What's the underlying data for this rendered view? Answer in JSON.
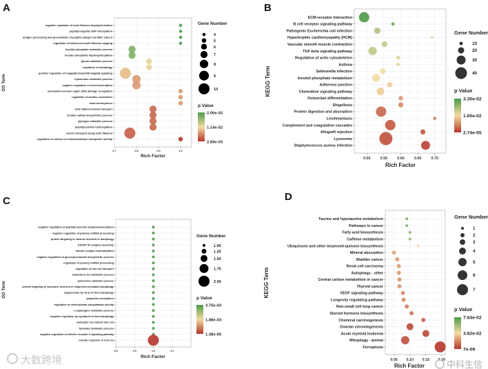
{
  "chart_data": [
    {
      "type": "scatter",
      "letter": "A",
      "y_title": "GO Term",
      "x_title": "Rich Factor",
      "xlim": [
        0.7,
        1.05
      ],
      "xticks": [
        0.7,
        0.8,
        0.9,
        1.0
      ],
      "xtick_labels": [
        "0.7",
        "0.8",
        "0.9",
        "1.0"
      ],
      "terms": [
        "negative regulation of actin filament depolymerization",
        "peptidyl-arginine ADP-ribosylation",
        "antigen processing and presentation of peptide antigen via MHC class II",
        "regulation of barbed-end actin filament capping",
        "inositol phosphate metabolic process",
        "inositol phosphate dephosphorylation",
        "glucan catabolic process",
        "regulation of autophagy",
        "positive regulation of I-kappaB kinase/NF-kappaB signaling",
        "hyaluronan metabolic process",
        "negative regulation of viral transcription",
        "nucleotide-excision repair, DNA damage recognition",
        "regulation of cardiac conduction",
        "head development",
        "actin filament-based transport",
        "keratan sulfate biosynthetic process",
        "glycogen catabolic process",
        "peptidyl-proline hydroxylation",
        "vesicle transport along actin filament",
        "regulation of sodium ion transmembrane transporter activity"
      ],
      "rich_factor": [
        1.0,
        1.0,
        1.0,
        1.0,
        0.78,
        0.78,
        0.857,
        0.857,
        0.75,
        0.8,
        0.8,
        1.0,
        1.0,
        1.0,
        0.875,
        0.875,
        0.875,
        0.875,
        0.77,
        1.0
      ],
      "gene_number": [
        4,
        4,
        4,
        4,
        7,
        7,
        6,
        6,
        10,
        8,
        8,
        5,
        5,
        5,
        7,
        7,
        7,
        7,
        10,
        5
      ],
      "p_value": [
        0.02,
        0.02,
        0.02,
        0.02,
        0.0174,
        0.0174,
        0.0123,
        0.0123,
        0.0097,
        0.008,
        0.008,
        0.008,
        0.008,
        0.008,
        0.0054,
        0.0054,
        0.0054,
        0.0054,
        0.0049,
        0.00283
      ],
      "size_legend": {
        "title": "Gene Number",
        "values": [
          4,
          5,
          6,
          7,
          8,
          9,
          10
        ],
        "labels": [
          "4",
          "5",
          "6",
          "7",
          "8",
          "9",
          "10"
        ]
      },
      "color_legend": {
        "title": "p Value",
        "range": [
          0.00283,
          0.02
        ],
        "labels": [
          "2.00e-02",
          "1.14e-02",
          "2.83e-03"
        ]
      }
    },
    {
      "type": "scatter",
      "letter": "B",
      "y_title": "KEGG Term",
      "x_title": "Rich Factor",
      "xlim": [
        0.463,
        0.733
      ],
      "xticks": [
        0.5,
        0.55,
        0.6,
        0.65,
        0.7
      ],
      "xtick_labels": [
        "0.50",
        "0.55",
        "0.60",
        "0.65",
        "0.70"
      ],
      "terms": [
        "ECM-receptor interaction",
        "B cell receptor signaling pathway",
        "Pathogenic Escherichia coli infection",
        "Hypertrophic cardiomyopathy (HCM)",
        "Vascular smooth muscle contraction",
        "TGF-beta signaling pathway",
        "Regulation of actin cytoskeleton",
        "Asthma",
        "Salmonella infection",
        "Inositol phosphate metabolism",
        "Adherens junction",
        "Chemokine signaling pathway",
        "Osteoclast differentiation",
        "Shigellosis",
        "Protein digestion and absorption",
        "Leishmaniasis",
        "Complement and coagulation cascades",
        "Allograft rejection",
        "Lysosome",
        "Staphylococcus aureus infection"
      ],
      "rich_factor": [
        0.492,
        0.577,
        0.531,
        0.692,
        0.552,
        0.517,
        0.592,
        0.592,
        0.547,
        0.527,
        0.567,
        0.54,
        0.6,
        0.6,
        0.542,
        0.7,
        0.569,
        0.665,
        0.556,
        0.673
      ],
      "gene_number": [
        35,
        10,
        20,
        6,
        18,
        28,
        12,
        10,
        18,
        26,
        16,
        25,
        14,
        16,
        35,
        9,
        35,
        16,
        45,
        30
      ],
      "p_value": [
        0.033,
        0.0297,
        0.0231,
        0.0198,
        0.0215,
        0.0215,
        0.0182,
        0.0182,
        0.0165,
        0.0165,
        0.0149,
        0.0149,
        0.0099,
        0.0083,
        0.005,
        0.0066,
        0.0033,
        0.0033,
        0.0026,
        0.001
      ],
      "size_legend": {
        "title": "Gene Number",
        "values": [
          10,
          20,
          30,
          40
        ],
        "labels": [
          "10",
          "20",
          "30",
          "40"
        ]
      },
      "color_legend": {
        "title": "p Value",
        "range": [
          2.74e-05,
          0.033
        ],
        "labels": [
          "3.30e-02",
          "1.65e-02",
          "2.74e-05"
        ]
      }
    },
    {
      "type": "scatter",
      "letter": "C",
      "y_title": "GO Term",
      "x_title": "Rich Factor",
      "xlim": [
        0.8,
        1.2
      ],
      "xticks": [
        0.8,
        0.9,
        1.0,
        1.1
      ],
      "xtick_labels": [
        "0.8",
        "0.9",
        "1.0",
        "1.1"
      ],
      "terms": [
        "negative regulation of peptidyl-tyrosine autophosphorylation",
        "negative regulation of primary miRNA processing",
        "protein targeting to vacuole involved in autophagy",
        "ESCRT III complex assembly",
        "insulin receptor internalization",
        "negative regulation of glucosylceramide biosynthetic process",
        "regulation of primary miRNA processing",
        "regulation of iron ion transport",
        "leukotriene A4 metabolic process",
        "putrescine catabolic process",
        "protein targeting to lysosome involved in chaperone-mediated autophagy",
        "suppression by virus of host autophagy",
        "polyamine acetylation",
        "regulation of carbohydrate phosphatase activity",
        "L-asparagine metabolic process",
        "negative regulation by symbiont of host autophagy",
        "endocytic iron import into cell",
        "fumarate metabolic process",
        "negative regulation of toll-like receptor 5 signaling pathway",
        "cellular response to iron ion"
      ],
      "rich_factor": [
        1,
        1,
        1,
        1,
        1,
        1,
        1,
        1,
        1,
        1,
        1,
        1,
        1,
        1,
        1,
        1,
        1,
        1,
        1,
        1
      ],
      "gene_number": [
        1,
        1,
        1,
        1,
        1,
        1,
        1,
        1,
        1,
        1,
        1,
        1,
        1,
        1,
        1,
        1,
        1,
        1,
        1,
        2
      ],
      "p_value": [
        0.00375,
        0.00375,
        0.00375,
        0.00375,
        0.00375,
        0.00375,
        0.00375,
        0.00375,
        0.00375,
        0.00375,
        0.00375,
        0.00375,
        0.00375,
        0.00375,
        0.00375,
        0.00375,
        0.00375,
        0.00375,
        0.00375,
        1.38e-05
      ],
      "size_legend": {
        "title": "Gene Number",
        "values": [
          1,
          1.25,
          1.5,
          1.75,
          2
        ],
        "labels": [
          "1.00",
          "1.25",
          "1.50",
          "1.75",
          "2.00"
        ]
      },
      "color_legend": {
        "title": "p Value",
        "range": [
          1.38e-05,
          0.00375
        ],
        "labels": [
          "3.75e-03",
          "1.88e-03",
          "1.38e-05"
        ]
      }
    },
    {
      "type": "scatter",
      "letter": "D",
      "y_title": "KEGG Term",
      "x_title": "Rich Factor",
      "xlim": [
        0.0225,
        0.211
      ],
      "xticks": [
        0.05,
        0.1,
        0.15,
        0.2
      ],
      "xtick_labels": [
        "0.05",
        "0.10",
        "0.15",
        "0.20"
      ],
      "terms": [
        "Taurine and hypotaurine metabolism",
        "Pathways in cancer",
        "Fatty acid biosynthesis",
        "Caffeine metabolism",
        "Ubiquinone and other terpenoid-quinone biosynthesis",
        "Mineral absorption",
        "Bladder cancer",
        "Renal cell carcinoma",
        "Autophagy - other",
        "Central carbon metabolism in cancer",
        "Thyroid cancer",
        "VEGF signaling pathway",
        "Longevity regulating pathway",
        "Non-small cell lung cancer",
        "Steroid hormone biosynthesis",
        "Chemical carcinogenesis",
        "Ovarian steroidogenesis",
        "Acute myeloid leukemia",
        "Mitophagy - animal",
        "Ferroptosis"
      ],
      "rich_factor": [
        0.09,
        0.09,
        0.1,
        0.1,
        0.125,
        0.05,
        0.06,
        0.065,
        0.065,
        0.067,
        0.067,
        0.078,
        0.08,
        0.09,
        0.105,
        0.142,
        0.1,
        0.15,
        0.085,
        0.195
      ],
      "gene_number": [
        1,
        1,
        1,
        1,
        1,
        2,
        2,
        2,
        2,
        2,
        2,
        2,
        2,
        2,
        2,
        2,
        4,
        4,
        5,
        7
      ],
      "p_value": [
        0.065,
        0.065,
        0.0611,
        0.0611,
        0.0382,
        0.0267,
        0.0229,
        0.0229,
        0.0229,
        0.0214,
        0.0214,
        0.0191,
        0.0191,
        0.0168,
        0.0153,
        0.0092,
        0.0038,
        0.0038,
        0.0061,
        0.0
      ],
      "size_legend": {
        "title": "Gene Number",
        "values": [
          1,
          2,
          3,
          4,
          5,
          6,
          7
        ],
        "labels": [
          "1",
          "2",
          "3",
          "4",
          "5",
          "6",
          "7"
        ]
      },
      "color_legend": {
        "title": "p Value",
        "range": [
          0.0,
          0.0764
        ],
        "labels": [
          "7.64e-02",
          "3.82e-02",
          "7e-09"
        ]
      }
    }
  ],
  "watermarks": {
    "left": "大数跨境",
    "right": "中科生信"
  },
  "colors": {
    "low_p": "#b5362c",
    "mid_p": "#f2dca2",
    "high_p": "#4e9a4a"
  }
}
